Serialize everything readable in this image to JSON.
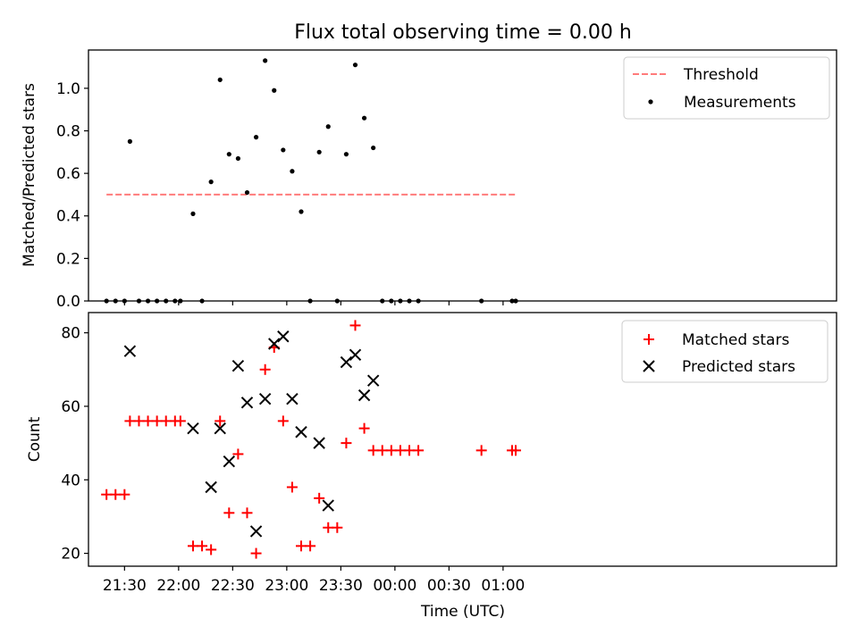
{
  "title": "Flux total observing time = 0.00 h",
  "chart_data": [
    {
      "type": "scatter",
      "ylabel": "Matched/Predicted stars",
      "ylim": [
        0,
        1.18
      ],
      "yticks": [
        0.0,
        0.2,
        0.4,
        0.6,
        0.8,
        1.0
      ],
      "ytick_labels": [
        "0.0",
        "0.2",
        "0.4",
        "0.6",
        "0.8",
        "1.0"
      ],
      "xlim_minutes": [
        1270,
        1685
      ],
      "grid": false,
      "legend": {
        "placement": "top-right",
        "entries": [
          "Threshold",
          "Measurements"
        ]
      },
      "threshold": {
        "name": "Threshold",
        "value": 0.5,
        "x_start": "21:20",
        "x_end": "01:07",
        "color": "#ff7b7b",
        "style": "dashed"
      },
      "measurements": {
        "name": "Measurements",
        "color": "#000000",
        "points": [
          [
            "21:20",
            0.0
          ],
          [
            "21:25",
            0.0
          ],
          [
            "21:30",
            0.0
          ],
          [
            "21:33",
            0.75
          ],
          [
            "21:38",
            0.0
          ],
          [
            "21:43",
            0.0
          ],
          [
            "21:48",
            0.0
          ],
          [
            "21:53",
            0.0
          ],
          [
            "21:58",
            0.0
          ],
          [
            "22:01",
            0.0
          ],
          [
            "22:08",
            0.41
          ],
          [
            "22:13",
            0.0
          ],
          [
            "22:18",
            0.56
          ],
          [
            "22:23",
            1.04
          ],
          [
            "22:28",
            0.69
          ],
          [
            "22:33",
            0.67
          ],
          [
            "22:38",
            0.51
          ],
          [
            "22:43",
            0.77
          ],
          [
            "22:48",
            1.13
          ],
          [
            "22:53",
            0.99
          ],
          [
            "22:58",
            0.71
          ],
          [
            "23:03",
            0.61
          ],
          [
            "23:08",
            0.42
          ],
          [
            "23:13",
            0.0
          ],
          [
            "23:18",
            0.7
          ],
          [
            "23:23",
            0.82
          ],
          [
            "23:28",
            0.0
          ],
          [
            "23:33",
            0.69
          ],
          [
            "23:38",
            1.11
          ],
          [
            "23:43",
            0.86
          ],
          [
            "23:48",
            0.72
          ],
          [
            "23:53",
            0.0
          ],
          [
            "23:58",
            0.0
          ],
          [
            "00:03",
            0.0
          ],
          [
            "00:08",
            0.0
          ],
          [
            "00:13",
            0.0
          ],
          [
            "00:48",
            0.0
          ],
          [
            "01:05",
            0.0
          ],
          [
            "01:07",
            0.0
          ]
        ]
      }
    },
    {
      "type": "scatter",
      "ylabel": "Count",
      "xlabel": "Time (UTC)",
      "ylim": [
        16.5,
        85.5
      ],
      "yticks": [
        20,
        40,
        60,
        80
      ],
      "ytick_labels": [
        "20",
        "40",
        "60",
        "80"
      ],
      "xlim_minutes": [
        1270,
        1685
      ],
      "xticks": [
        "21:30",
        "22:00",
        "22:30",
        "23:00",
        "23:30",
        "00:00",
        "00:30",
        "01:00"
      ],
      "grid": false,
      "legend": {
        "placement": "top-right",
        "entries": [
          "Matched stars",
          "Predicted stars"
        ]
      },
      "series": [
        {
          "name": "Matched stars",
          "marker": "plus",
          "color": "#ff0000",
          "points": [
            [
              "21:20",
              36
            ],
            [
              "21:25",
              36
            ],
            [
              "21:30",
              36
            ],
            [
              "21:33",
              56
            ],
            [
              "21:38",
              56
            ],
            [
              "21:43",
              56
            ],
            [
              "21:48",
              56
            ],
            [
              "21:53",
              56
            ],
            [
              "21:58",
              56
            ],
            [
              "22:01",
              56
            ],
            [
              "22:08",
              22
            ],
            [
              "22:13",
              22
            ],
            [
              "22:18",
              21
            ],
            [
              "22:23",
              56
            ],
            [
              "22:28",
              31
            ],
            [
              "22:33",
              47
            ],
            [
              "22:38",
              31
            ],
            [
              "22:43",
              20
            ],
            [
              "22:48",
              70
            ],
            [
              "22:53",
              76
            ],
            [
              "22:58",
              56
            ],
            [
              "23:03",
              38
            ],
            [
              "23:08",
              22
            ],
            [
              "23:13",
              22
            ],
            [
              "23:18",
              35
            ],
            [
              "23:23",
              27
            ],
            [
              "23:28",
              27
            ],
            [
              "23:33",
              50
            ],
            [
              "23:38",
              82
            ],
            [
              "23:43",
              54
            ],
            [
              "23:48",
              48
            ],
            [
              "23:53",
              48
            ],
            [
              "23:58",
              48
            ],
            [
              "00:03",
              48
            ],
            [
              "00:08",
              48
            ],
            [
              "00:13",
              48
            ],
            [
              "00:48",
              48
            ],
            [
              "01:05",
              48
            ],
            [
              "01:07",
              48
            ]
          ]
        },
        {
          "name": "Predicted stars",
          "marker": "x",
          "color": "#000000",
          "points": [
            [
              "21:33",
              75
            ],
            [
              "22:08",
              54
            ],
            [
              "22:18",
              38
            ],
            [
              "22:23",
              54
            ],
            [
              "22:28",
              45
            ],
            [
              "22:33",
              71
            ],
            [
              "22:38",
              61
            ],
            [
              "22:43",
              26
            ],
            [
              "22:48",
              62
            ],
            [
              "22:53",
              77
            ],
            [
              "22:58",
              79
            ],
            [
              "23:03",
              62
            ],
            [
              "23:08",
              53
            ],
            [
              "23:18",
              50
            ],
            [
              "23:23",
              33
            ],
            [
              "23:33",
              72
            ],
            [
              "23:38",
              74
            ],
            [
              "23:43",
              63
            ],
            [
              "23:48",
              67
            ]
          ]
        }
      ]
    }
  ]
}
